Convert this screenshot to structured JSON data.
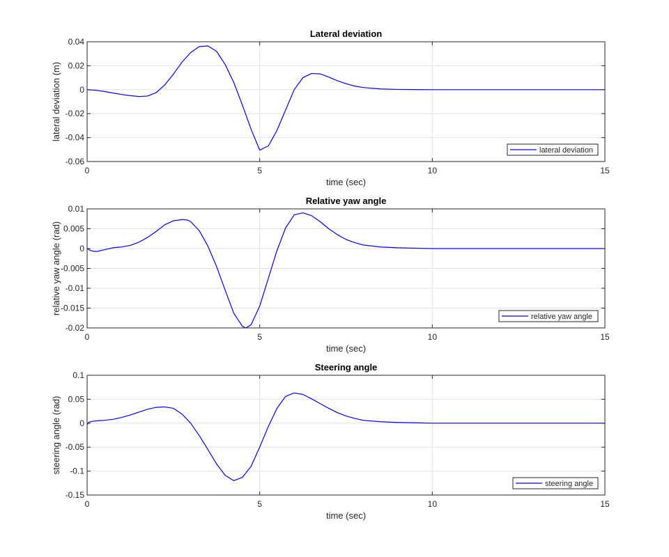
{
  "chart_data": [
    {
      "type": "line",
      "title": "Lateral deviation",
      "xlabel": "time (sec)",
      "ylabel": "lateral deviation (m)",
      "xlim": [
        0,
        15
      ],
      "ylim": [
        -0.06,
        0.04
      ],
      "xticks": [
        0,
        5,
        10,
        15
      ],
      "yticks": [
        -0.06,
        -0.04,
        -0.02,
        0,
        0.02,
        0.04
      ],
      "xtick_labels": [
        "0",
        "5",
        "10",
        "15"
      ],
      "ytick_labels": [
        "-0.06",
        "-0.04",
        "-0.02",
        "0",
        "0.02",
        "0.04"
      ],
      "grid": true,
      "legend_position": "bottom-right",
      "series": [
        {
          "name": "lateral deviation",
          "color": "#0000ff",
          "x": [
            0,
            0.25,
            0.5,
            0.75,
            1.0,
            1.25,
            1.5,
            1.75,
            2.0,
            2.25,
            2.5,
            2.75,
            3.0,
            3.25,
            3.5,
            3.75,
            4.0,
            4.25,
            4.5,
            4.75,
            5.0,
            5.25,
            5.5,
            5.75,
            6.0,
            6.25,
            6.5,
            6.75,
            7.0,
            7.25,
            7.5,
            7.75,
            8.0,
            8.5,
            9.0,
            9.5,
            10.0,
            11.0,
            12.0,
            13.0,
            14.0,
            15.0
          ],
          "y": [
            0,
            -0.0005,
            -0.0015,
            -0.0028,
            -0.004,
            -0.005,
            -0.0057,
            -0.0053,
            -0.0025,
            0.004,
            0.013,
            0.023,
            0.031,
            0.036,
            0.0365,
            0.032,
            0.021,
            0.006,
            -0.013,
            -0.033,
            -0.0505,
            -0.047,
            -0.034,
            -0.017,
            0.0,
            0.01,
            0.0135,
            0.0132,
            0.0105,
            0.0075,
            0.005,
            0.003,
            0.0018,
            0.0006,
            0.0002,
            0.0001,
            0.0,
            0.0,
            0.0,
            0.0,
            0.0,
            0.0
          ]
        }
      ]
    },
    {
      "type": "line",
      "title": "Relative yaw angle",
      "xlabel": "time (sec)",
      "ylabel": "relative yaw angle (rad)",
      "xlim": [
        0,
        15
      ],
      "ylim": [
        -0.02,
        0.01
      ],
      "xticks": [
        0,
        5,
        10,
        15
      ],
      "yticks": [
        -0.02,
        -0.015,
        -0.01,
        -0.005,
        0,
        0.005,
        0.01
      ],
      "xtick_labels": [
        "0",
        "5",
        "10",
        "15"
      ],
      "ytick_labels": [
        "-0.02",
        "-0.015",
        "-0.01",
        "-0.005",
        "0",
        "0.005",
        "0.01"
      ],
      "grid": true,
      "legend_position": "bottom-right",
      "series": [
        {
          "name": "relative yaw angle",
          "color": "#0000ff",
          "x": [
            0,
            0.1,
            0.2,
            0.3,
            0.5,
            0.75,
            1.0,
            1.25,
            1.5,
            1.75,
            2.0,
            2.25,
            2.5,
            2.75,
            2.9,
            3.0,
            3.25,
            3.5,
            3.75,
            4.0,
            4.25,
            4.5,
            4.6,
            4.75,
            5.0,
            5.25,
            5.5,
            5.75,
            6.0,
            6.25,
            6.5,
            6.75,
            7.0,
            7.25,
            7.5,
            7.75,
            8.0,
            8.5,
            9.0,
            9.5,
            10.0,
            11.0,
            12.0,
            13.0,
            14.0,
            15.0
          ],
          "y": [
            0,
            -0.0005,
            -0.0007,
            -0.0007,
            -0.0003,
            0.0002,
            0.0004,
            0.0008,
            0.0016,
            0.0028,
            0.0043,
            0.006,
            0.007,
            0.0073,
            0.0072,
            0.0068,
            0.0045,
            0.0006,
            -0.0045,
            -0.0105,
            -0.0163,
            -0.0196,
            -0.02,
            -0.0192,
            -0.0145,
            -0.0075,
            -0.0005,
            0.0052,
            0.0085,
            0.009,
            0.0083,
            0.0068,
            0.005,
            0.0035,
            0.0023,
            0.0015,
            0.0009,
            0.0004,
            0.0002,
            0.0001,
            0.0,
            0.0,
            0.0,
            0.0,
            0.0,
            0.0
          ]
        }
      ]
    },
    {
      "type": "line",
      "title": "Steering angle",
      "xlabel": "time (sec)",
      "ylabel": "steering angle (rad)",
      "xlim": [
        0,
        15
      ],
      "ylim": [
        -0.15,
        0.1
      ],
      "xticks": [
        0,
        5,
        10,
        15
      ],
      "yticks": [
        -0.15,
        -0.1,
        -0.05,
        0,
        0.05,
        0.1
      ],
      "xtick_labels": [
        "0",
        "5",
        "10",
        "15"
      ],
      "ytick_labels": [
        "-0.15",
        "-0.1",
        "-0.05",
        "0",
        "0.05",
        "0.1"
      ],
      "grid": true,
      "legend_position": "bottom-right",
      "series": [
        {
          "name": "steering angle",
          "color": "#0000ff",
          "x": [
            0,
            0.05,
            0.15,
            0.3,
            0.5,
            0.75,
            1.0,
            1.25,
            1.5,
            1.75,
            2.0,
            2.25,
            2.5,
            2.75,
            3.0,
            3.25,
            3.5,
            3.75,
            4.0,
            4.25,
            4.5,
            4.75,
            5.0,
            5.25,
            5.5,
            5.75,
            6.0,
            6.25,
            6.5,
            6.75,
            7.0,
            7.25,
            7.5,
            7.75,
            8.0,
            8.5,
            9.0,
            9.5,
            10.0,
            11.0,
            12.0,
            13.0,
            14.0,
            15.0
          ],
          "y": [
            -0.003,
            0.002,
            0.004,
            0.005,
            0.006,
            0.008,
            0.012,
            0.017,
            0.023,
            0.029,
            0.033,
            0.034,
            0.031,
            0.019,
            0.0,
            -0.026,
            -0.055,
            -0.085,
            -0.109,
            -0.12,
            -0.113,
            -0.09,
            -0.05,
            -0.007,
            0.031,
            0.056,
            0.063,
            0.06,
            0.051,
            0.041,
            0.031,
            0.022,
            0.015,
            0.01,
            0.006,
            0.003,
            0.0015,
            0.0008,
            0.0,
            0.0,
            0.0,
            0.0,
            0.0,
            0.0
          ]
        }
      ]
    }
  ]
}
